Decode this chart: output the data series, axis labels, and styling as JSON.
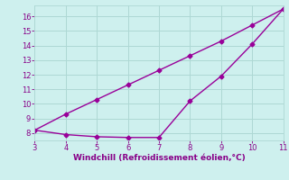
{
  "line1_x": [
    3,
    4,
    5,
    6,
    7,
    8,
    9,
    10,
    11
  ],
  "line1_y": [
    8.2,
    9.3,
    10.3,
    11.3,
    12.3,
    13.3,
    14.3,
    15.4,
    16.5
  ],
  "line2_x": [
    3,
    4,
    5,
    6,
    7,
    8,
    9,
    10,
    11
  ],
  "line2_y": [
    8.2,
    7.9,
    7.75,
    7.7,
    7.7,
    10.2,
    11.9,
    14.1,
    16.5
  ],
  "line_color": "#990099",
  "bg_color": "#cef0ee",
  "grid_color": "#aed8d4",
  "xlabel": "Windchill (Refroidissement éolien,°C)",
  "xlabel_color": "#880088",
  "tick_color": "#880088",
  "xlim": [
    3,
    11
  ],
  "ylim": [
    7.5,
    16.75
  ],
  "xticks": [
    3,
    4,
    5,
    6,
    7,
    8,
    9,
    10,
    11
  ],
  "yticks": [
    8,
    9,
    10,
    11,
    12,
    13,
    14,
    15,
    16
  ],
  "marker": "D",
  "marker_size": 2.5,
  "line_width": 1.0
}
